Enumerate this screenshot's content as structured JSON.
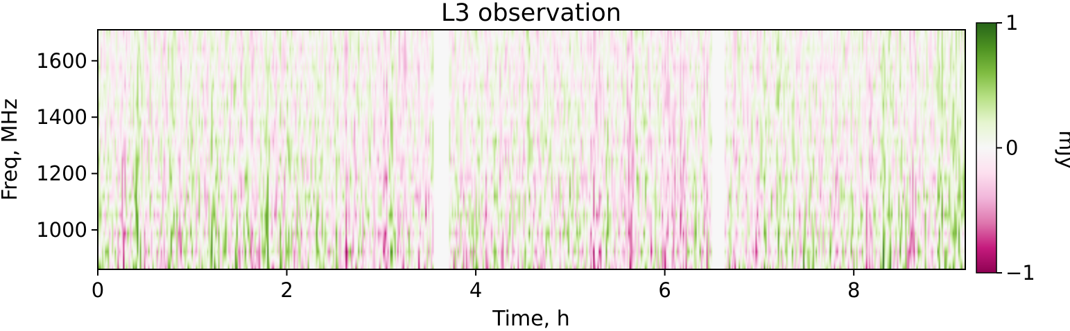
{
  "chart_data": {
    "type": "heatmap",
    "title": "L3 observation",
    "xlabel": "Time, h",
    "ylabel": "Freq, MHz",
    "xlim": [
      0,
      9.18
    ],
    "ylim": [
      860,
      1710
    ],
    "x_ticks": [
      0,
      2,
      4,
      6,
      8
    ],
    "y_ticks": [
      1000,
      1200,
      1400,
      1600
    ],
    "colorbar": {
      "label": "mJy",
      "range": [
        -1,
        1
      ],
      "ticks": [
        -1,
        0,
        1
      ],
      "tick_labels": [
        "−1",
        "0",
        "1"
      ],
      "colormap": "PiYG",
      "colors": {
        "min": "#8e0152",
        "mid": "#f7f7f7",
        "max": "#276419"
      }
    },
    "masked_time_ranges_h": [
      [
        3.55,
        3.72
      ],
      [
        6.5,
        6.63
      ]
    ],
    "masked_color": "#f7f7f7",
    "data_description": "dense noisy residual field; amplitudes within ±1 mJy, stronger near low frequencies",
    "grid": false
  }
}
